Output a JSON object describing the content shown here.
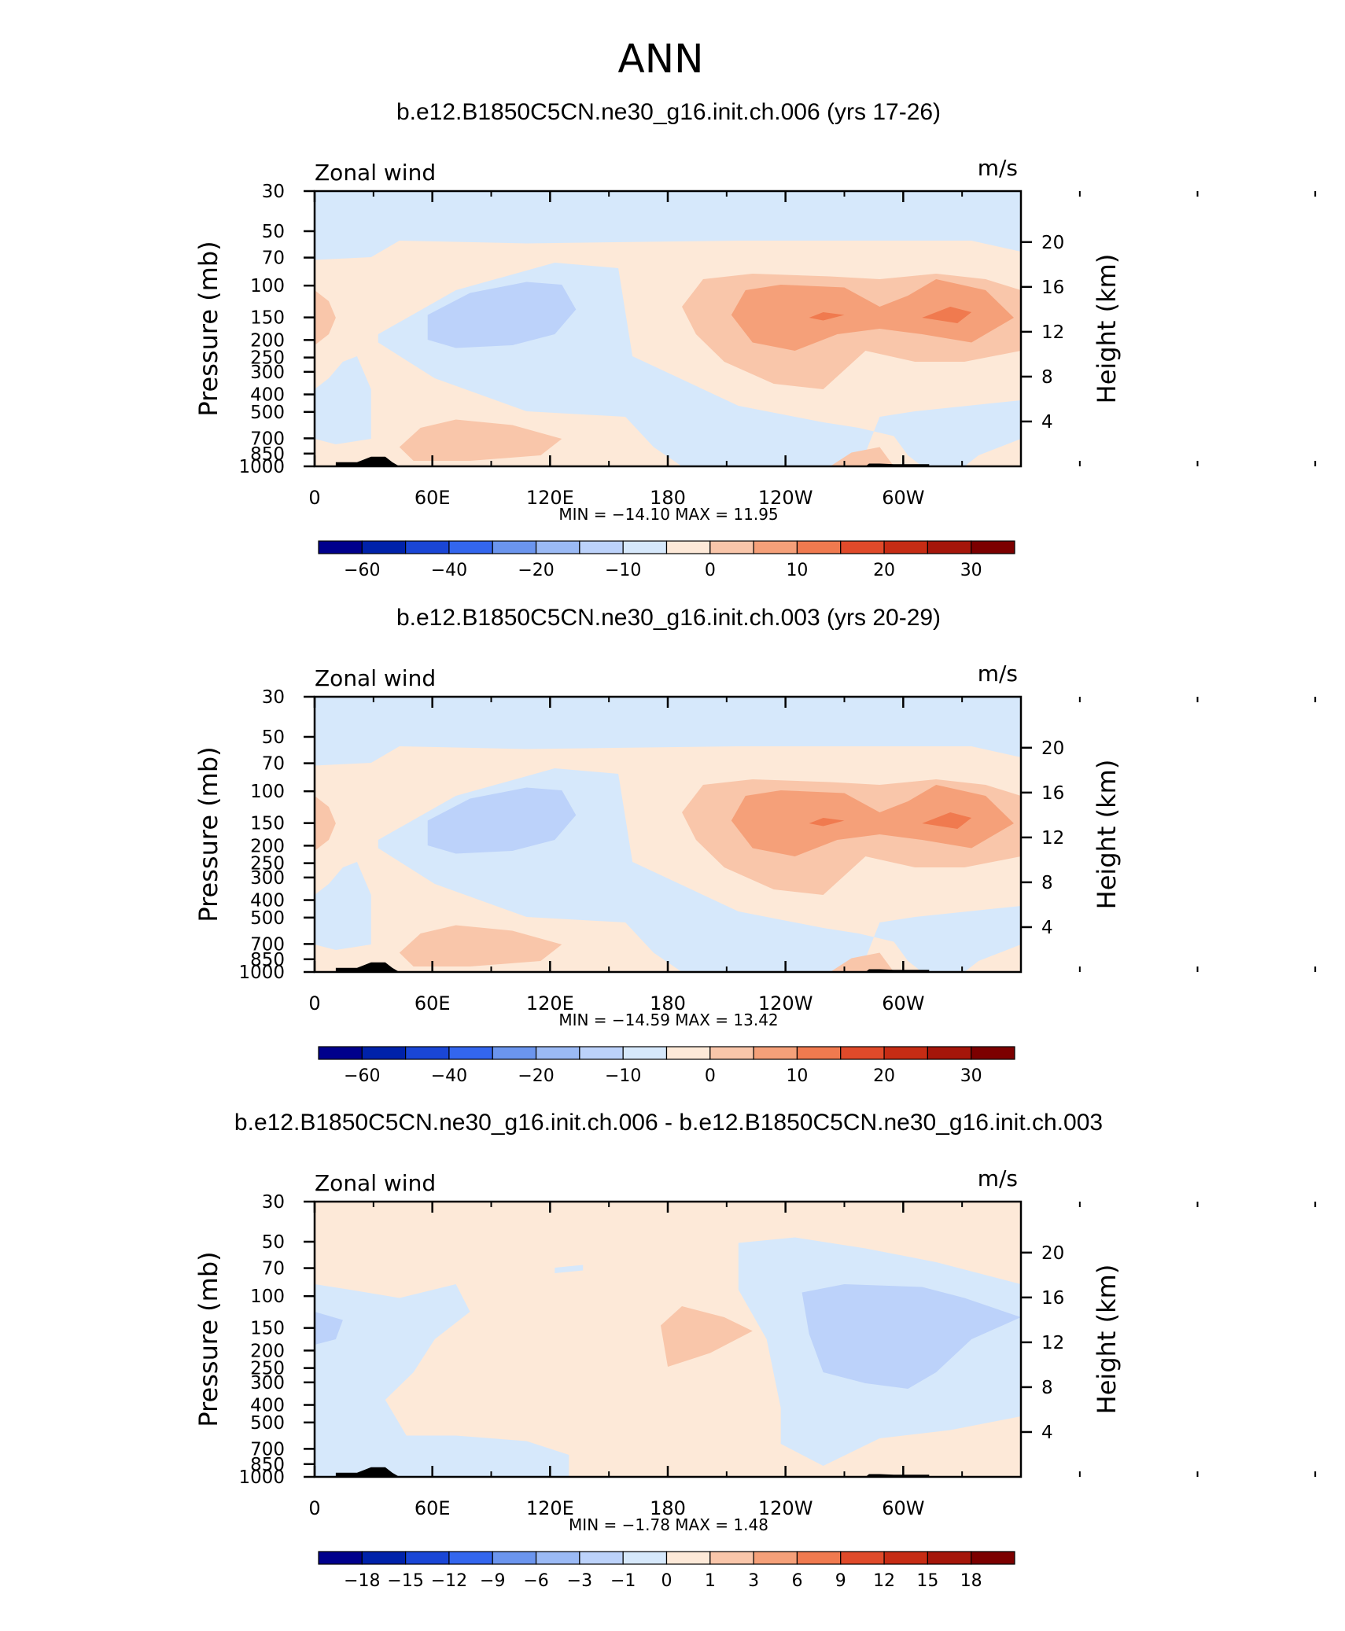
{
  "title": "ANN",
  "chart_data": [
    {
      "type": "heatmap",
      "title": "b.e12.B1850C5CN.ne30_g16.init.ch.006 (yrs 17-26)",
      "left_label": "Zonal wind",
      "units": "m/s",
      "ylabel_left": "Pressure (mb)",
      "ylabel_right": "Height (km)",
      "x_tick_labels": [
        "0",
        "60E",
        "120E",
        "180",
        "120W",
        "60W"
      ],
      "y_pressure_ticks": [
        "30",
        "50",
        "70",
        "100",
        "150",
        "200",
        "250",
        "300",
        "400",
        "500",
        "700",
        "850",
        "1000"
      ],
      "y_height_ticks": [
        "20",
        "16",
        "12",
        "8",
        "4"
      ],
      "min_max_text": "MIN = −14.10 MAX = 11.95",
      "min": -14.1,
      "max": 11.95,
      "colorbar_labels": [
        "−60",
        "−40",
        "−20",
        "−10",
        "0",
        "10",
        "20",
        "30"
      ]
    },
    {
      "type": "heatmap",
      "title": "b.e12.B1850C5CN.ne30_g16.init.ch.003 (yrs 20-29)",
      "left_label": "Zonal wind",
      "units": "m/s",
      "ylabel_left": "Pressure (mb)",
      "ylabel_right": "Height (km)",
      "x_tick_labels": [
        "0",
        "60E",
        "120E",
        "180",
        "120W",
        "60W"
      ],
      "y_pressure_ticks": [
        "30",
        "50",
        "70",
        "100",
        "150",
        "200",
        "250",
        "300",
        "400",
        "500",
        "700",
        "850",
        "1000"
      ],
      "y_height_ticks": [
        "20",
        "16",
        "12",
        "8",
        "4"
      ],
      "min_max_text": "MIN = −14.59 MAX = 13.42",
      "min": -14.59,
      "max": 13.42,
      "colorbar_labels": [
        "−60",
        "−40",
        "−20",
        "−10",
        "0",
        "10",
        "20",
        "30"
      ]
    },
    {
      "type": "heatmap",
      "title": "b.e12.B1850C5CN.ne30_g16.init.ch.006 - b.e12.B1850C5CN.ne30_g16.init.ch.003",
      "left_label": "Zonal wind",
      "units": "m/s",
      "ylabel_left": "Pressure (mb)",
      "ylabel_right": "Height (km)",
      "x_tick_labels": [
        "0",
        "60E",
        "120E",
        "180",
        "120W",
        "60W"
      ],
      "y_pressure_ticks": [
        "30",
        "50",
        "70",
        "100",
        "150",
        "200",
        "250",
        "300",
        "400",
        "500",
        "700",
        "850",
        "1000"
      ],
      "y_height_ticks": [
        "20",
        "16",
        "12",
        "8",
        "4"
      ],
      "min_max_text": "MIN = −1.78 MAX = 1.48",
      "min": -1.78,
      "max": 1.48,
      "colorbar_labels": [
        "−18",
        "−15",
        "−12",
        "−9",
        "−6",
        "−3",
        "−1",
        "0",
        "1",
        "3",
        "6",
        "9",
        "12",
        "15",
        "18"
      ]
    }
  ],
  "colors": {
    "scale": [
      "#00008c",
      "#0022aa",
      "#1a46d6",
      "#3366ee",
      "#6b95ee",
      "#9bbaf5",
      "#bcd2fa",
      "#d6e8fb",
      "#fde9d8",
      "#f9c6aa",
      "#f5a079",
      "#f07a4f",
      "#e04a2a",
      "#c62c14",
      "#a5160a",
      "#7c0000"
    ]
  }
}
